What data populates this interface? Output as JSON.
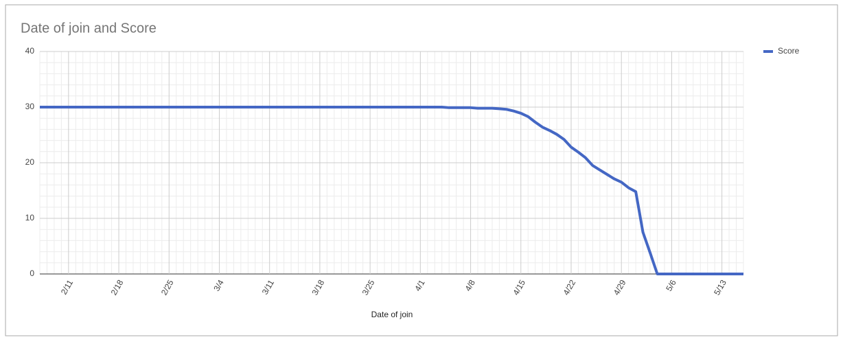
{
  "chart_data": {
    "type": "line",
    "title": "Date of join and Score",
    "x_label": "Date of join",
    "categories": [
      null,
      null,
      null,
      null,
      "2/11",
      null,
      null,
      null,
      null,
      null,
      null,
      "2/18",
      null,
      null,
      null,
      null,
      null,
      null,
      "2/25",
      null,
      null,
      null,
      null,
      null,
      null,
      "3/4",
      null,
      null,
      null,
      null,
      null,
      null,
      "3/11",
      null,
      null,
      null,
      null,
      null,
      null,
      "3/18",
      null,
      null,
      null,
      null,
      null,
      null,
      "3/25",
      null,
      null,
      null,
      null,
      null,
      null,
      "4/1",
      null,
      null,
      null,
      null,
      null,
      null,
      "4/8",
      null,
      null,
      null,
      null,
      null,
      null,
      "4/15",
      null,
      null,
      null,
      null,
      null,
      null,
      "4/22",
      null,
      null,
      null,
      null,
      null,
      null,
      "4/29",
      null,
      null,
      null,
      null,
      null,
      null,
      "5/6",
      null,
      null,
      null,
      null,
      null,
      null,
      "5/13",
      null,
      null,
      null
    ],
    "series": [
      {
        "name": "Score",
        "color": "#4467c4",
        "values": [
          30,
          30,
          30,
          30,
          30,
          30,
          30,
          30,
          30,
          30,
          30,
          30,
          30,
          30,
          30,
          30,
          30,
          30,
          30,
          30,
          30,
          30,
          30,
          30,
          30,
          30,
          30,
          30,
          30,
          30,
          30,
          30,
          30,
          30,
          30,
          30,
          30,
          30,
          30,
          30,
          30,
          30,
          30,
          30,
          30,
          30,
          30,
          30,
          30,
          30,
          30,
          30,
          30,
          30,
          30,
          30,
          30,
          29.9,
          29.9,
          29.9,
          29.9,
          29.8,
          29.8,
          29.8,
          29.7,
          29.6,
          29.3,
          28.9,
          28.3,
          27.3,
          26.4,
          25.8,
          25.1,
          24.2,
          22.8,
          21.9,
          20.9,
          19.5,
          18.7,
          17.9,
          17.1,
          16.5,
          15.5,
          14.8,
          7.5,
          3.8,
          0,
          0,
          0,
          0,
          0,
          0,
          0,
          0,
          0,
          0,
          0,
          0,
          0
        ]
      }
    ],
    "ylim": [
      0,
      40
    ],
    "yticks": [
      0,
      10,
      20,
      30,
      40
    ],
    "y_minor_ticks": [
      2,
      4,
      6,
      8,
      12,
      14,
      16,
      18,
      22,
      24,
      26,
      28,
      32,
      34,
      36,
      38
    ],
    "grid": true,
    "legend": "right"
  }
}
